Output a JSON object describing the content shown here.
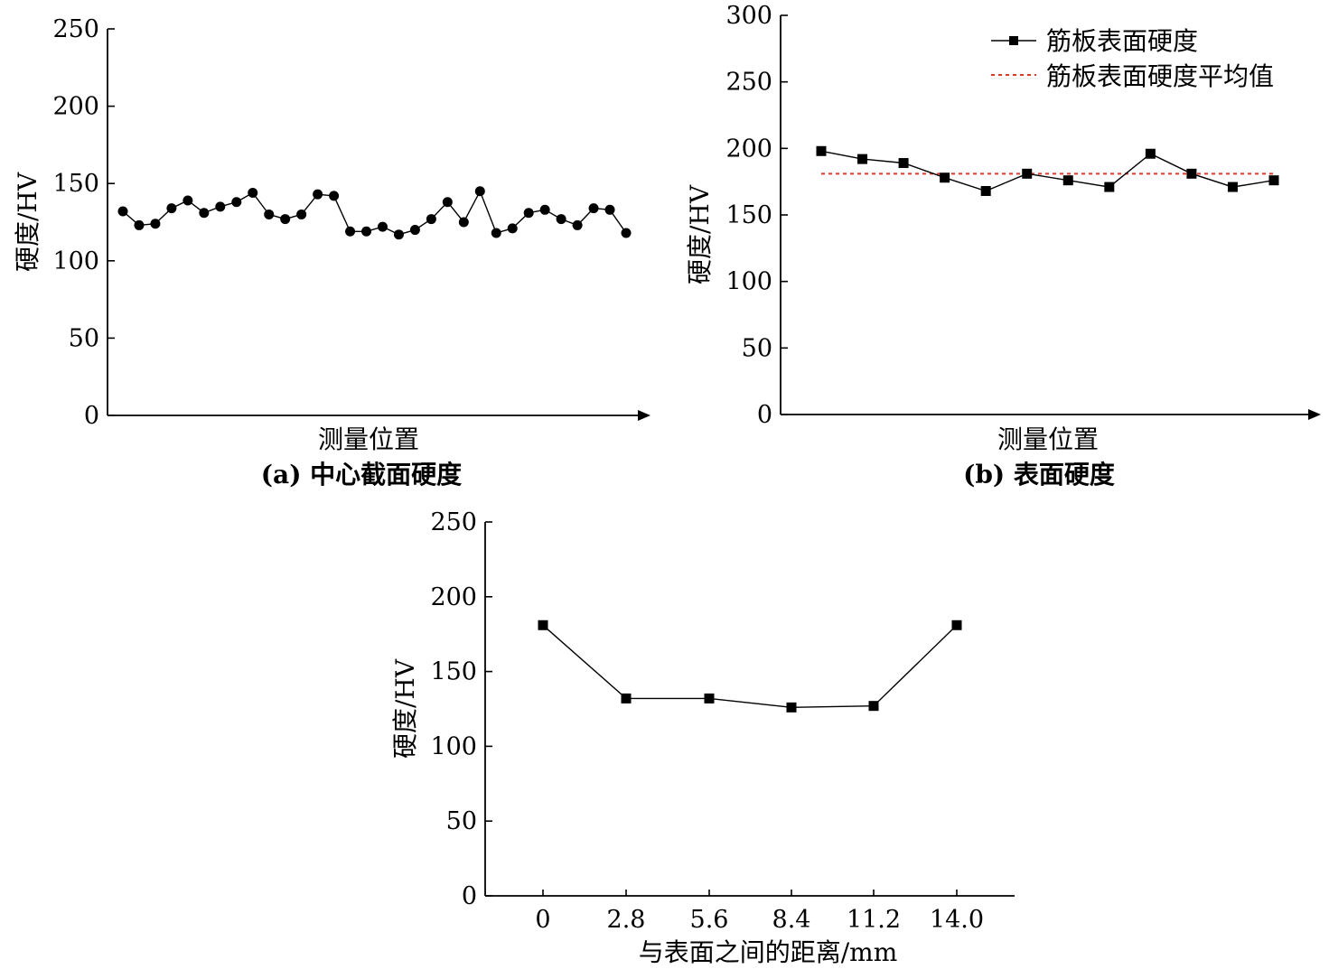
{
  "chart_data": [
    {
      "id": "a",
      "type": "line",
      "caption": "(a) 中心截面硬度",
      "xlabel": "测量位置",
      "ylabel": "硬度/HV",
      "ylim": [
        0,
        250
      ],
      "yticks": [
        0,
        50,
        100,
        150,
        200,
        250
      ],
      "marker": "circle",
      "series": [
        {
          "values": [
            132,
            123,
            124,
            134,
            139,
            131,
            135,
            138,
            144,
            130,
            127,
            130,
            143,
            142,
            119,
            119,
            122,
            117,
            120,
            127,
            138,
            125,
            145,
            118,
            121,
            131,
            133,
            127,
            123,
            134,
            133,
            118
          ]
        }
      ]
    },
    {
      "id": "b",
      "type": "line",
      "caption": "(b) 表面硬度",
      "xlabel": "测量位置",
      "ylabel": "硬度/HV",
      "ylim": [
        0,
        300
      ],
      "yticks": [
        0,
        50,
        100,
        150,
        200,
        250,
        300
      ],
      "marker": "square",
      "series": [
        {
          "name": "筋板表面硬度",
          "values": [
            198,
            192,
            189,
            178,
            168,
            181,
            176,
            171,
            196,
            181,
            171,
            176
          ]
        },
        {
          "name": "筋板表面硬度平均值",
          "style": "dotted",
          "color": "#e8352a",
          "value": 181
        }
      ],
      "legend_position": "top-right"
    },
    {
      "id": "c",
      "type": "line",
      "xlabel": "与表面之间的距离/mm",
      "ylabel": "硬度/HV",
      "ylim": [
        0,
        250
      ],
      "yticks": [
        0,
        50,
        100,
        150,
        200,
        250
      ],
      "categories": [
        "0",
        "2.8",
        "5.6",
        "8.4",
        "11.2",
        "14.0"
      ],
      "marker": "square",
      "series": [
        {
          "values": [
            181,
            132,
            132,
            126,
            127,
            181
          ]
        }
      ]
    }
  ]
}
